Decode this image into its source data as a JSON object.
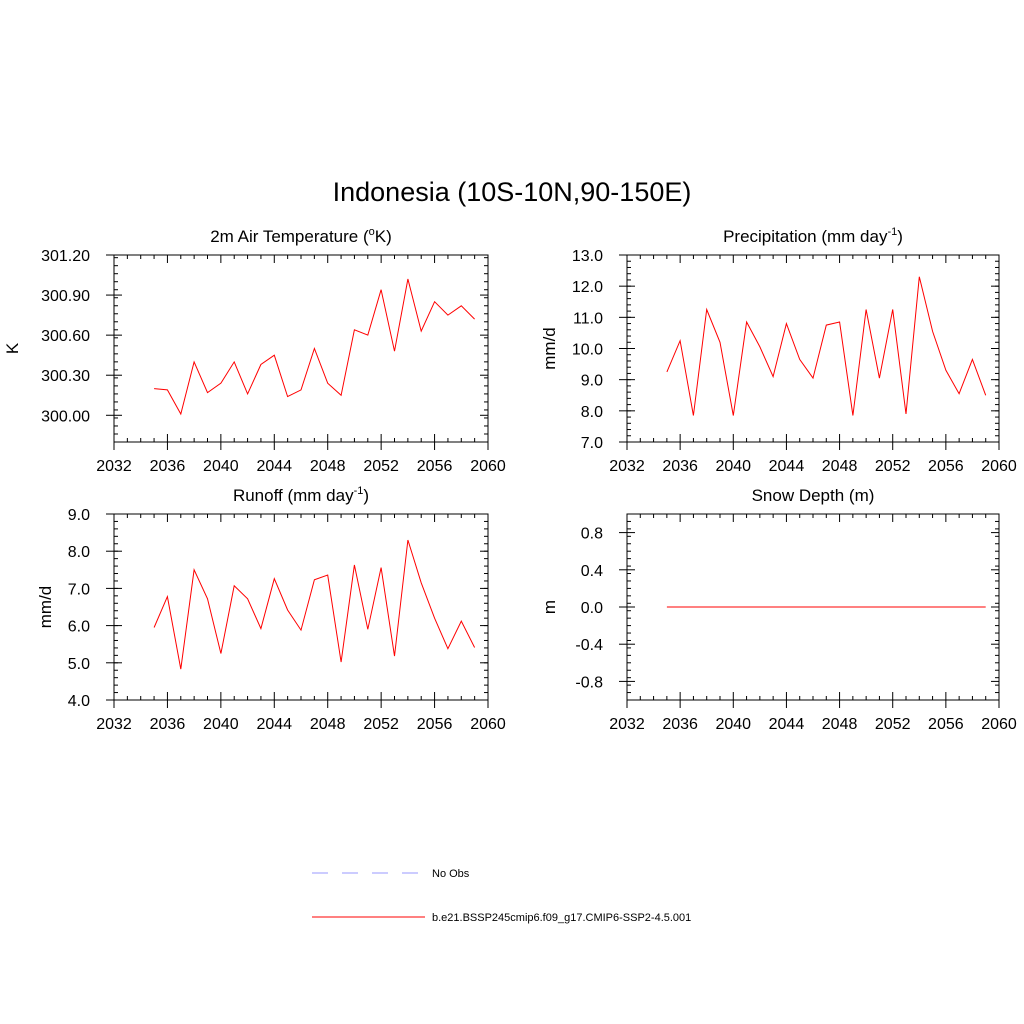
{
  "page": {
    "title": "Indonesia (10S-10N,90-150E)"
  },
  "colors": {
    "series": "#ff0000",
    "obs": "#9999ff",
    "frame": "#000000"
  },
  "chart_data": [
    {
      "type": "line",
      "title_main": "2m Air Temperature (",
      "title_sup": "o",
      "title_end": "K)",
      "ylabel": "K",
      "xlim": [
        2032,
        2060
      ],
      "ylim": [
        299.8,
        301.2
      ],
      "xticks": [
        2032,
        2036,
        2040,
        2044,
        2048,
        2052,
        2056,
        2060
      ],
      "xtick_labels": [
        "2032",
        "2036",
        "2040",
        "2044",
        "2048",
        "2052",
        "2056",
        "2060"
      ],
      "yticks": [
        300.0,
        300.3,
        300.6,
        300.9,
        301.2
      ],
      "ytick_labels": [
        "300.00",
        "300.30",
        "300.60",
        "300.90",
        "301.20"
      ],
      "x": [
        2035,
        2036,
        2037,
        2038,
        2039,
        2040,
        2041,
        2042,
        2043,
        2044,
        2045,
        2046,
        2047,
        2048,
        2049,
        2050,
        2051,
        2052,
        2053,
        2054,
        2055,
        2056,
        2057,
        2058,
        2059
      ],
      "series": [
        {
          "name": "b.e21.BSSP245cmip6.f09_g17.CMIP6-SSP2-4.5.001",
          "values": [
            300.2,
            300.19,
            300.01,
            300.4,
            300.17,
            300.24,
            300.4,
            300.16,
            300.38,
            300.45,
            300.14,
            300.19,
            300.5,
            300.24,
            300.15,
            300.64,
            300.6,
            300.94,
            300.48,
            301.02,
            300.63,
            300.85,
            300.75,
            300.82,
            300.72
          ]
        }
      ]
    },
    {
      "type": "line",
      "title_main": "Precipitation (mm day",
      "title_sup": "-1",
      "title_end": ")",
      "ylabel": "mm/d",
      "xlim": [
        2032,
        2060
      ],
      "ylim": [
        7.0,
        13.0
      ],
      "xticks": [
        2032,
        2036,
        2040,
        2044,
        2048,
        2052,
        2056,
        2060
      ],
      "xtick_labels": [
        "2032",
        "2036",
        "2040",
        "2044",
        "2048",
        "2052",
        "2056",
        "2060"
      ],
      "yticks": [
        7.0,
        8.0,
        9.0,
        10.0,
        11.0,
        12.0,
        13.0
      ],
      "ytick_labels": [
        "7.0",
        "8.0",
        "9.0",
        "10.0",
        "11.0",
        "12.0",
        "13.0"
      ],
      "x": [
        2035,
        2036,
        2037,
        2038,
        2039,
        2040,
        2041,
        2042,
        2043,
        2044,
        2045,
        2046,
        2047,
        2048,
        2049,
        2050,
        2051,
        2052,
        2053,
        2054,
        2055,
        2056,
        2057,
        2058,
        2059
      ],
      "series": [
        {
          "name": "b.e21.BSSP245cmip6.f09_g17.CMIP6-SSP2-4.5.001",
          "values": [
            9.25,
            10.25,
            7.85,
            11.25,
            10.2,
            7.85,
            10.85,
            10.05,
            9.1,
            10.8,
            9.65,
            9.05,
            10.75,
            10.85,
            7.85,
            11.25,
            9.05,
            11.25,
            7.9,
            12.3,
            10.55,
            9.3,
            8.55,
            9.65,
            8.5
          ]
        }
      ]
    },
    {
      "type": "line",
      "title_main": "Runoff (mm day",
      "title_sup": "-1",
      "title_end": ")",
      "ylabel": "mm/d",
      "xlim": [
        2032,
        2060
      ],
      "ylim": [
        4.0,
        9.0
      ],
      "xticks": [
        2032,
        2036,
        2040,
        2044,
        2048,
        2052,
        2056,
        2060
      ],
      "xtick_labels": [
        "2032",
        "2036",
        "2040",
        "2044",
        "2048",
        "2052",
        "2056",
        "2060"
      ],
      "yticks": [
        4.0,
        5.0,
        6.0,
        7.0,
        8.0,
        9.0
      ],
      "ytick_labels": [
        "4.0",
        "5.0",
        "6.0",
        "7.0",
        "8.0",
        "9.0"
      ],
      "x": [
        2035,
        2036,
        2037,
        2038,
        2039,
        2040,
        2041,
        2042,
        2043,
        2044,
        2045,
        2046,
        2047,
        2048,
        2049,
        2050,
        2051,
        2052,
        2053,
        2054,
        2055,
        2056,
        2057,
        2058,
        2059
      ],
      "series": [
        {
          "name": "b.e21.BSSP245cmip6.f09_g17.CMIP6-SSP2-4.5.001",
          "values": [
            5.95,
            6.78,
            4.83,
            7.5,
            6.72,
            5.25,
            7.07,
            6.72,
            5.92,
            7.26,
            6.42,
            5.88,
            7.23,
            7.36,
            5.02,
            7.63,
            5.9,
            7.56,
            5.18,
            8.3,
            7.15,
            6.2,
            5.38,
            6.12,
            5.41
          ]
        }
      ]
    },
    {
      "type": "line",
      "title_main": "Snow Depth (m)",
      "title_sup": "",
      "title_end": "",
      "ylabel": "m",
      "xlim": [
        2032,
        2060
      ],
      "ylim": [
        -1.0,
        1.0
      ],
      "xticks": [
        2032,
        2036,
        2040,
        2044,
        2048,
        2052,
        2056,
        2060
      ],
      "xtick_labels": [
        "2032",
        "2036",
        "2040",
        "2044",
        "2048",
        "2052",
        "2056",
        "2060"
      ],
      "yticks": [
        -0.8,
        -0.4,
        0.0,
        0.4,
        0.8
      ],
      "ytick_labels": [
        "-0.8",
        "-0.4",
        "0.0",
        "0.4",
        "0.8"
      ],
      "x": [
        2035,
        2036,
        2037,
        2038,
        2039,
        2040,
        2041,
        2042,
        2043,
        2044,
        2045,
        2046,
        2047,
        2048,
        2049,
        2050,
        2051,
        2052,
        2053,
        2054,
        2055,
        2056,
        2057,
        2058,
        2059
      ],
      "series": [
        {
          "name": "b.e21.BSSP245cmip6.f09_g17.CMIP6-SSP2-4.5.001",
          "values": [
            0,
            0,
            0,
            0,
            0,
            0,
            0,
            0,
            0,
            0,
            0,
            0,
            0,
            0,
            0,
            0,
            0,
            0,
            0,
            0,
            0,
            0,
            0,
            0,
            0
          ]
        }
      ]
    }
  ],
  "legend": {
    "items": [
      {
        "label": "No Obs",
        "style": "dashed",
        "color": "#9999ff"
      },
      {
        "label": "b.e21.BSSP245cmip6.f09_g17.CMIP6-SSP2-4.5.001",
        "style": "solid",
        "color": "#ff0000"
      }
    ]
  }
}
